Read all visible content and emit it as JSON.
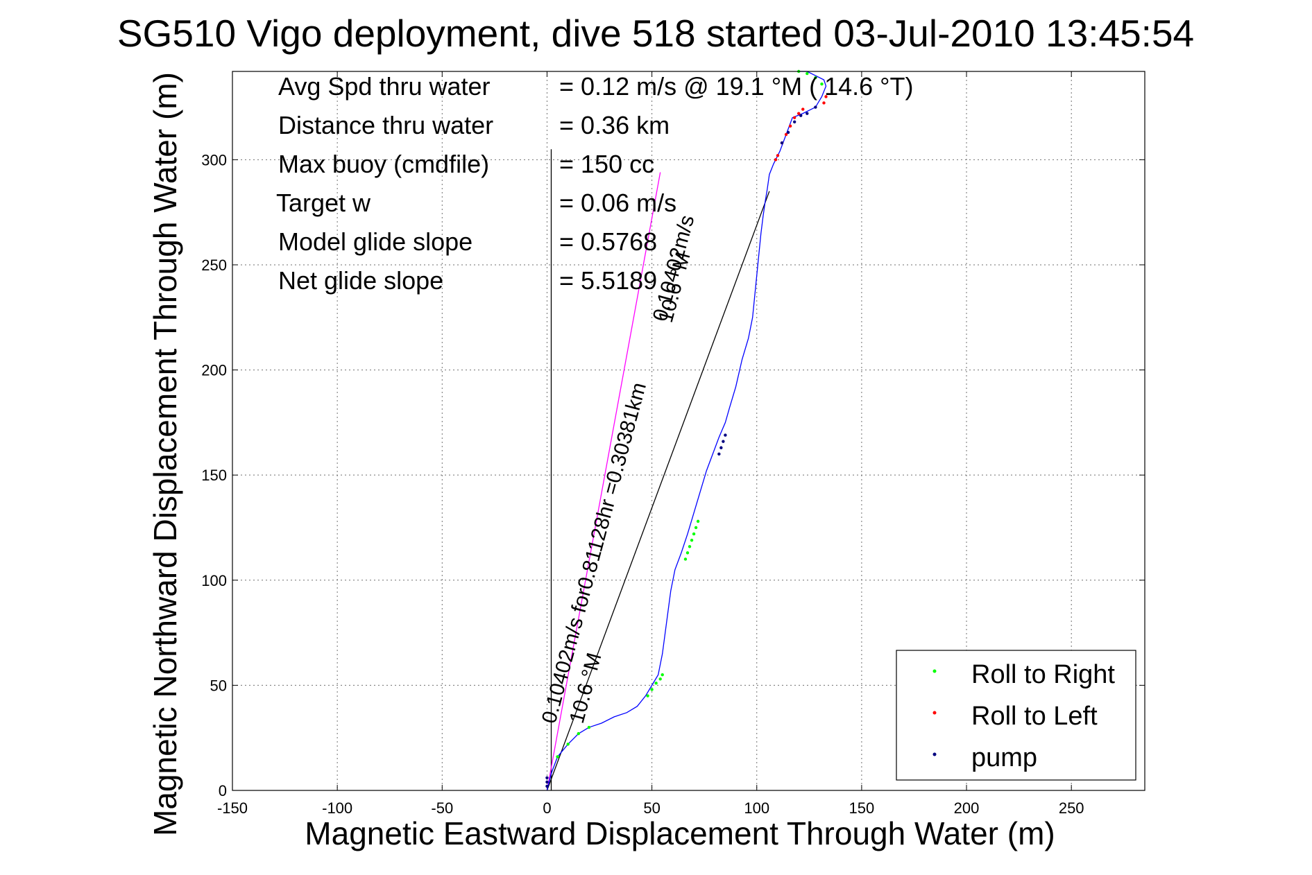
{
  "chart_data": {
    "type": "line",
    "title": "SG510 Vigo deployment, dive 518 started 03-Jul-2010 13:45:54",
    "xlabel": "Magnetic Eastward Displacement Through Water (m)",
    "ylabel": "Magnetic Northward Displacement Through Water (m)",
    "xlim": [
      -150,
      285
    ],
    "ylim": [
      0,
      342
    ],
    "xticks": [
      -150,
      -100,
      -50,
      0,
      50,
      100,
      150,
      200,
      250
    ],
    "yticks": [
      0,
      50,
      100,
      150,
      200,
      250,
      300
    ],
    "grid": true,
    "legend_position": "bottom-right",
    "info": [
      {
        "label": "Avg Spd thru water",
        "value": "=  0.12 m/s @   19.1 °M ( 14.6 °T)"
      },
      {
        "label": "Distance thru water",
        "value": "=  0.36 km"
      },
      {
        "label": "Max buoy (cmdfile)",
        "value": "= 150 cc"
      },
      {
        "label": "Target w",
        "value": "= 0.06 m/s"
      },
      {
        "label": "Model glide slope",
        "value": "= 0.5768"
      },
      {
        "label": "Net glide slope",
        "value": "= 5.5189"
      }
    ],
    "annotations": {
      "current_line_label": "0.10402m/s for0.81128hr =0.30381km",
      "current_heading_label": "10.6 °M",
      "net_line_label": "0.10402m/s",
      "net_heading_label": "10.6 °M"
    },
    "series": [
      {
        "name": "track",
        "color": "#0000ff",
        "x": [
          0,
          2,
          5,
          10,
          15,
          20,
          26,
          32,
          38,
          43,
          47,
          50,
          53,
          55,
          57,
          59,
          61,
          64,
          67,
          70,
          73,
          76,
          79,
          82,
          85,
          87,
          90,
          93,
          96,
          98,
          99,
          100,
          101,
          102,
          103,
          104,
          105,
          106,
          108,
          111,
          114,
          117,
          122,
          128,
          131,
          133,
          132,
          128,
          124,
          120
        ],
        "y": [
          0,
          8,
          16,
          22,
          27,
          30,
          32,
          35,
          37,
          40,
          45,
          50,
          55,
          65,
          80,
          95,
          105,
          113,
          122,
          132,
          142,
          152,
          160,
          168,
          175,
          182,
          192,
          205,
          215,
          225,
          235,
          245,
          255,
          265,
          273,
          280,
          286,
          293,
          298,
          304,
          312,
          320,
          322,
          325,
          330,
          335,
          338,
          340,
          342,
          342
        ]
      },
      {
        "name": "Roll to Right",
        "color": "#00ff00",
        "x": [
          5,
          10,
          15,
          20,
          48,
          50,
          52,
          54,
          55,
          66,
          67,
          68,
          69,
          70,
          71,
          72,
          120,
          124,
          128,
          131
        ],
        "y": [
          16,
          22,
          27,
          30,
          45,
          48,
          51,
          53,
          55,
          110,
          113,
          116,
          119,
          122,
          125,
          128,
          342,
          341,
          339,
          336
        ]
      },
      {
        "name": "Roll to Left",
        "color": "#ff0000",
        "x": [
          112,
          114,
          116,
          118,
          120,
          122,
          109,
          110,
          132,
          133
        ],
        "y": [
          308,
          312,
          316,
          320,
          322,
          324,
          300,
          302,
          327,
          330
        ]
      },
      {
        "name": "pump",
        "color": "#00007f",
        "x": [
          0,
          0,
          0,
          82,
          83,
          84,
          85,
          112,
          115,
          118,
          121,
          124,
          128
        ],
        "y": [
          2,
          4,
          6,
          160,
          163,
          166,
          169,
          308,
          313,
          318,
          321,
          322,
          325
        ]
      }
    ],
    "lines": {
      "current_line": {
        "color": "#ff00ff",
        "x": [
          0,
          54
        ],
        "y": [
          0,
          294
        ]
      },
      "net_line": {
        "color": "#000000",
        "x": [
          0,
          106
        ],
        "y": [
          0,
          285
        ]
      },
      "vertical_line": {
        "color": "#000000",
        "x": [
          2,
          2
        ],
        "y": [
          0,
          305
        ]
      }
    }
  },
  "legend": {
    "items": [
      {
        "label": "Roll to Right",
        "color": "#00ff00"
      },
      {
        "label": "Roll to Left",
        "color": "#ff0000"
      },
      {
        "label": "pump",
        "color": "#00007f"
      }
    ]
  }
}
